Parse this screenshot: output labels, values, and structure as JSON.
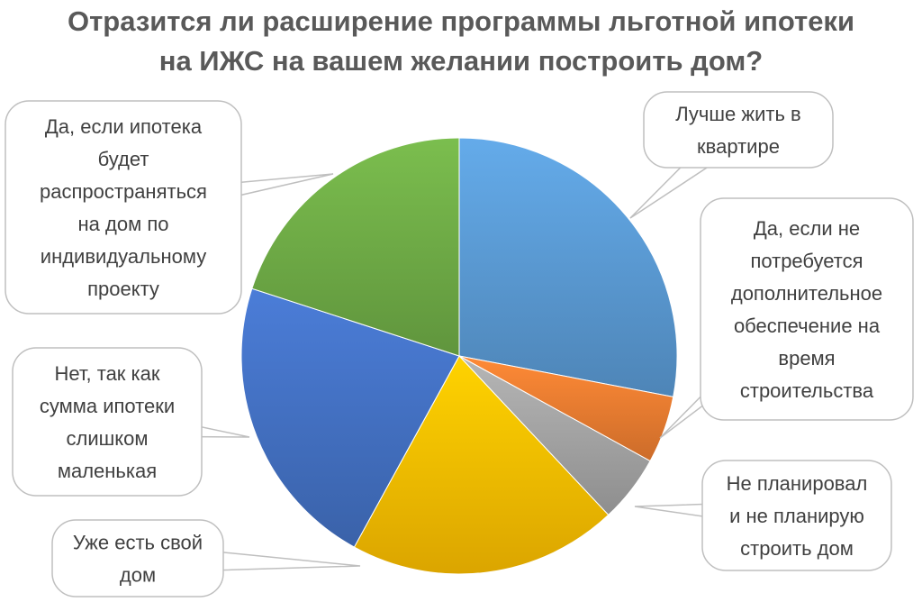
{
  "chart_data": {
    "type": "pie",
    "title_lines": [
      "Отразится ли расширение программы льготной ипотеки",
      "на ИЖС на вашем желании построить дом?"
    ],
    "slices": [
      {
        "label_lines": [
          "Лучше жить в",
          "квартире"
        ],
        "value": 28,
        "color": "#5b9bd5"
      },
      {
        "label_lines": [
          "Да, если не",
          "потребуется",
          "дополнительное",
          "обеспечение на",
          "время",
          "строительства"
        ],
        "value": 5,
        "color": "#ed7d31"
      },
      {
        "label_lines": [
          "Не планировал",
          "и не планирую",
          "строить дом"
        ],
        "value": 5,
        "color": "#a5a5a5"
      },
      {
        "label_lines": [
          "Уже есть свой",
          "дом"
        ],
        "value": 20,
        "color": "#ffc000"
      },
      {
        "label_lines": [
          "Нет, так как",
          "сумма ипотеки",
          "слишком",
          "маленькая"
        ],
        "value": 22,
        "color": "#4472c4"
      },
      {
        "label_lines": [
          "Да, если ипотека",
          "будет",
          "распространяться",
          "на дом по",
          "индивидуальному",
          "проекту"
        ],
        "value": 20,
        "color": "#70ad47"
      }
    ],
    "legend": "none",
    "data_labels": "callouts"
  }
}
